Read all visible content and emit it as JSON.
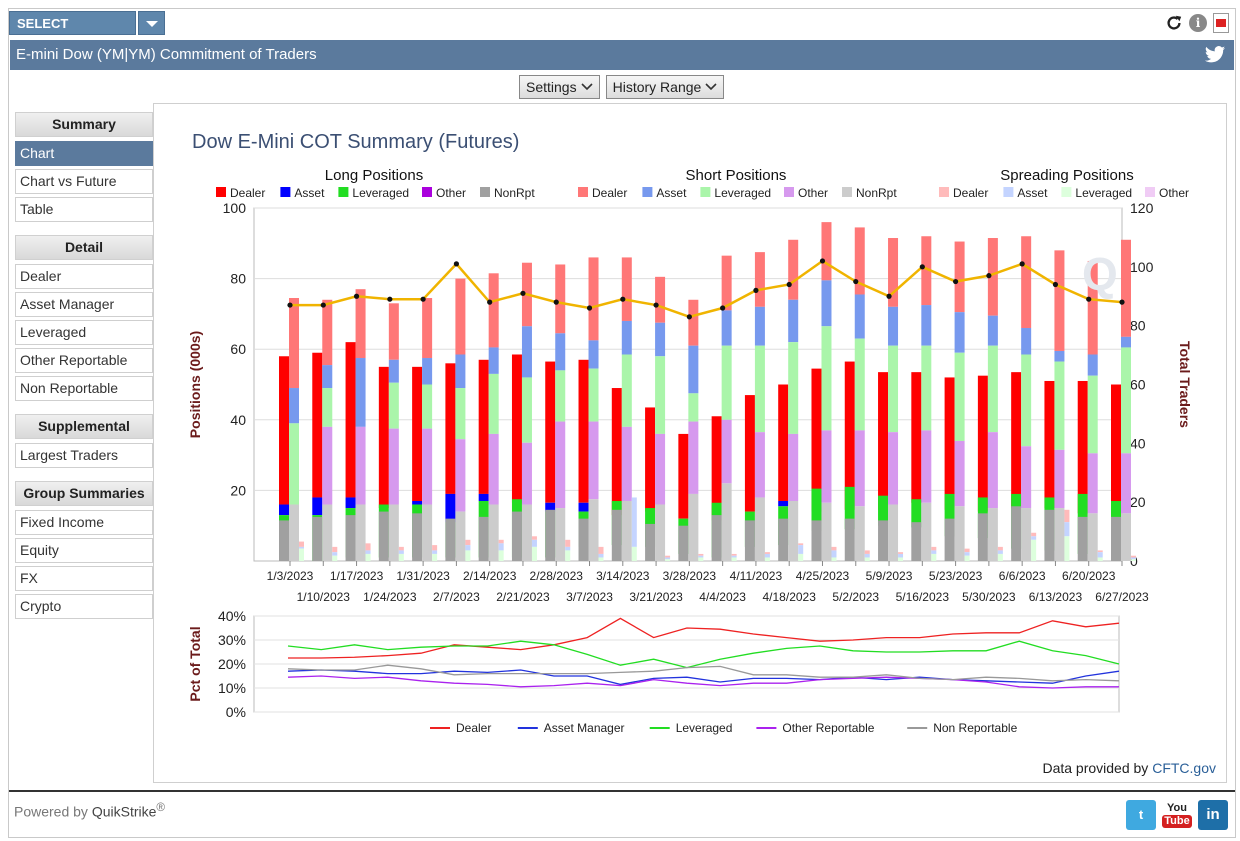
{
  "topbar": {
    "select_product_label": "SELECT PRODUCT"
  },
  "title": "E-mini Dow (YM|YM) Commitment of Traders",
  "controls": {
    "settings_label": "Settings",
    "history_label": "History Range"
  },
  "sidebar": {
    "sections": [
      {
        "heading": "Summary",
        "items": [
          "Chart",
          "Chart vs Future",
          "Table"
        ],
        "active": "Chart"
      },
      {
        "heading": "Detail",
        "items": [
          "Dealer",
          "Asset Manager",
          "Leveraged",
          "Other Reportable",
          "Non Reportable"
        ]
      },
      {
        "heading": "Supplemental",
        "items": [
          "Largest Traders"
        ]
      },
      {
        "heading": "Group Summaries",
        "items": [
          "Fixed Income",
          "Equity",
          "FX",
          "Crypto"
        ]
      }
    ]
  },
  "data_credit": {
    "prefix": "Data provided by ",
    "link": "CFTC.gov"
  },
  "footer": {
    "powered_prefix": "Powered by ",
    "brand": "QuikStrike",
    "reg": "®"
  },
  "colors": {
    "header": "#5b7a9d",
    "long": [
      "#ff0000",
      "#0000ff",
      "#22dd22",
      "#aa00dd",
      "#a0a0a0"
    ],
    "short": [
      "#ff7777",
      "#7799ee",
      "#aaf5aa",
      "#d699ee",
      "#cccccc"
    ],
    "spread": [
      "#ffbbbb",
      "#c4d4ff",
      "#ddffdd",
      "#f0ccf5"
    ],
    "traders": "#f0b400",
    "pct": [
      "#ee2222",
      "#2233dd",
      "#22dd22",
      "#aa22ee",
      "#999999"
    ]
  },
  "chart_data": [
    {
      "type": "bar",
      "title": "Dow E-Mini COT Summary (Futures)",
      "group_titles": [
        "Long Positions",
        "Short Positions",
        "Spreading Positions"
      ],
      "legend": {
        "long": [
          "Dealer",
          "Asset",
          "Leveraged",
          "Other",
          "NonRpt"
        ],
        "short": [
          "Dealer",
          "Asset",
          "Leveraged",
          "Other",
          "NonRpt"
        ],
        "spread": [
          "Dealer",
          "Asset",
          "Leveraged",
          "Other"
        ]
      },
      "ylabel": "Positions (000s)",
      "ylabel_right": "Total Traders",
      "ylim": [
        0,
        100
      ],
      "ylim_right": [
        0,
        120
      ],
      "yticks": [
        20,
        40,
        60,
        80,
        100
      ],
      "yticks_right": [
        0,
        20,
        40,
        60,
        80,
        100,
        120
      ],
      "categories": [
        "1/3/2023",
        "1/10/2023",
        "1/17/2023",
        "1/24/2023",
        "1/31/2023",
        "2/7/2023",
        "2/14/2023",
        "2/21/2023",
        "2/28/2023",
        "3/7/2023",
        "3/14/2023",
        "3/21/2023",
        "3/28/2023",
        "4/4/2023",
        "4/11/2023",
        "4/18/2023",
        "4/25/2023",
        "5/2/2023",
        "5/9/2023",
        "5/16/2023",
        "5/23/2023",
        "5/30/2023",
        "6/6/2023",
        "6/13/2023",
        "6/20/2023",
        "6/27/2023"
      ],
      "long": [
        [
          58,
          16,
          13,
          2,
          11.5
        ],
        [
          59,
          18,
          13,
          0,
          12.5
        ],
        [
          62,
          18,
          15,
          1,
          13
        ],
        [
          55,
          15,
          16,
          1,
          14
        ],
        [
          55,
          17,
          16,
          1,
          13.5
        ],
        [
          56,
          19,
          11,
          1,
          12
        ],
        [
          57,
          19,
          17,
          1,
          12.5
        ],
        [
          58.5,
          16.5,
          17.5,
          1,
          14
        ],
        [
          56.5,
          16.5,
          14,
          1,
          14.5
        ],
        [
          57,
          16.5,
          14,
          4,
          12
        ],
        [
          49,
          13,
          17,
          4.5,
          14.5
        ],
        [
          43.5,
          14,
          15,
          4,
          10.5
        ],
        [
          36,
          12,
          12,
          2,
          10
        ],
        [
          41,
          11.5,
          16.5,
          1,
          13
        ],
        [
          47,
          14,
          14,
          4,
          11.5
        ],
        [
          50,
          17,
          15.5,
          4.5,
          12
        ],
        [
          54.5,
          14,
          20.5,
          8.5,
          11.5
        ],
        [
          56.5,
          14.5,
          21,
          9,
          12
        ],
        [
          53.5,
          14.5,
          18.5,
          10,
          11.5
        ],
        [
          53.5,
          16.5,
          17.5,
          9.5,
          11
        ],
        [
          52,
          14.5,
          19,
          7,
          12
        ],
        [
          52.5,
          14,
          18,
          6.5,
          13.5
        ],
        [
          53.5,
          15,
          19,
          3.5,
          15.5
        ],
        [
          51,
          15,
          18,
          3,
          14.5
        ],
        [
          51,
          13.5,
          19,
          2,
          12.5
        ],
        [
          50,
          15,
          17,
          2.5,
          12.5
        ]
      ],
      "short": [
        [
          74.5,
          49,
          39,
          16,
          16
        ],
        [
          74,
          55.5,
          49,
          38,
          16
        ],
        [
          77,
          57.5,
          38,
          38,
          16
        ],
        [
          73,
          57,
          50.5,
          37.5,
          16
        ],
        [
          74.5,
          57.5,
          50,
          37.5,
          16
        ],
        [
          80,
          58.5,
          49,
          34.5,
          14
        ],
        [
          81.5,
          60.5,
          53,
          36,
          16
        ],
        [
          84.5,
          66.5,
          52,
          33.5,
          16
        ],
        [
          84,
          64.5,
          54,
          39.5,
          15
        ],
        [
          86,
          62.5,
          54.5,
          39.5,
          17.5
        ],
        [
          86,
          68,
          58.5,
          38,
          17
        ],
        [
          80.5,
          67.5,
          58,
          36,
          16
        ],
        [
          74,
          61,
          47.5,
          39.5,
          19
        ],
        [
          86.5,
          71,
          61,
          40,
          22
        ],
        [
          87.5,
          72,
          61,
          36.5,
          18
        ],
        [
          91,
          74,
          62,
          36,
          17
        ],
        [
          96,
          79.5,
          66.5,
          37,
          16.5
        ],
        [
          94.5,
          75.5,
          63,
          37,
          15.5
        ],
        [
          91.5,
          72,
          61,
          36.5,
          16
        ],
        [
          92,
          72.5,
          61,
          37,
          16.5
        ],
        [
          90.5,
          70.5,
          59,
          34,
          15.5
        ],
        [
          91.5,
          69.5,
          61,
          36.5,
          15
        ],
        [
          92,
          66,
          58.5,
          32.5,
          15
        ],
        [
          88,
          59.5,
          56.5,
          31.5,
          15
        ],
        [
          85,
          58.5,
          52.5,
          30.5,
          13.5
        ],
        [
          91,
          63.5,
          60.5,
          30.5,
          13.5
        ]
      ],
      "spread": [
        [
          5.5,
          4,
          3.5,
          0
        ],
        [
          4,
          2.5,
          1.5,
          0
        ],
        [
          5,
          3,
          2,
          0
        ],
        [
          4,
          3,
          2,
          0
        ],
        [
          4.5,
          3,
          2,
          0
        ],
        [
          6,
          4.5,
          3,
          0
        ],
        [
          6,
          5,
          3,
          0
        ],
        [
          7,
          6,
          4,
          0
        ],
        [
          6,
          4,
          3,
          0
        ],
        [
          4,
          2,
          1,
          0
        ],
        [
          18,
          18,
          4,
          0
        ],
        [
          1.5,
          1,
          0.5,
          0
        ],
        [
          2,
          1.5,
          1,
          0
        ],
        [
          2,
          1.5,
          1,
          0
        ],
        [
          2.5,
          2,
          1,
          0
        ],
        [
          5,
          4.5,
          2,
          0
        ],
        [
          4,
          3,
          1,
          0
        ],
        [
          3,
          2,
          1,
          0
        ],
        [
          2.5,
          2,
          1,
          0
        ],
        [
          4,
          3,
          2,
          0
        ],
        [
          3.5,
          2.5,
          1.5,
          0
        ],
        [
          4,
          3,
          2,
          0
        ],
        [
          8,
          7,
          6,
          0
        ],
        [
          14.5,
          11,
          7,
          0
        ],
        [
          3,
          2.5,
          1,
          0
        ],
        [
          1.5,
          1,
          0.5,
          0
        ]
      ],
      "total_traders": [
        87,
        87,
        90,
        89,
        89,
        101,
        88,
        91,
        88,
        86,
        89,
        87,
        83,
        86,
        92,
        94,
        102,
        95,
        90,
        100,
        95,
        97,
        101,
        94,
        89,
        88
      ]
    },
    {
      "type": "line",
      "ylabel": "Pct of Total",
      "ylim": [
        0,
        40
      ],
      "yticks": [
        "0%",
        "10%",
        "20%",
        "30%",
        "40%"
      ],
      "series": [
        {
          "name": "Dealer",
          "values": [
            22.5,
            22.5,
            22.8,
            23.5,
            24.5,
            28,
            27,
            26,
            28,
            31,
            39,
            31,
            35,
            34.5,
            32.5,
            31,
            29.5,
            30,
            31,
            31,
            32.5,
            33,
            33,
            38,
            35.5,
            37
          ]
        },
        {
          "name": "Asset Manager",
          "values": [
            17,
            17.5,
            17,
            16,
            16,
            17,
            16.5,
            17.5,
            15,
            15,
            11.5,
            14,
            14.5,
            12.5,
            14,
            14,
            13.5,
            14.5,
            13.5,
            14.5,
            13.5,
            13,
            12.5,
            12,
            15,
            17
          ]
        },
        {
          "name": "Leveraged",
          "values": [
            27.5,
            26,
            28,
            26,
            27,
            27.5,
            27.5,
            29.5,
            28,
            24,
            19.5,
            22,
            18.5,
            22,
            24.5,
            26.5,
            27.5,
            25.5,
            25,
            25,
            25.5,
            25.5,
            29.5,
            25.5,
            23.5,
            20
          ]
        },
        {
          "name": "Other Reportable",
          "values": [
            14.5,
            15,
            14,
            14.5,
            13,
            12,
            11.5,
            10.5,
            11,
            12,
            11,
            13.5,
            12,
            11,
            12,
            12,
            13.5,
            14,
            14.5,
            14,
            13.5,
            12.5,
            10.5,
            10,
            10.5,
            10.5
          ]
        },
        {
          "name": "Non Reportable",
          "values": [
            18,
            17.5,
            17.5,
            19.5,
            18,
            15.5,
            16,
            16,
            16,
            16,
            16.5,
            17,
            18.5,
            19,
            15.5,
            15.5,
            14.5,
            14.5,
            15.5,
            14,
            13.5,
            14.5,
            14,
            13,
            13.5,
            13
          ]
        }
      ]
    }
  ]
}
